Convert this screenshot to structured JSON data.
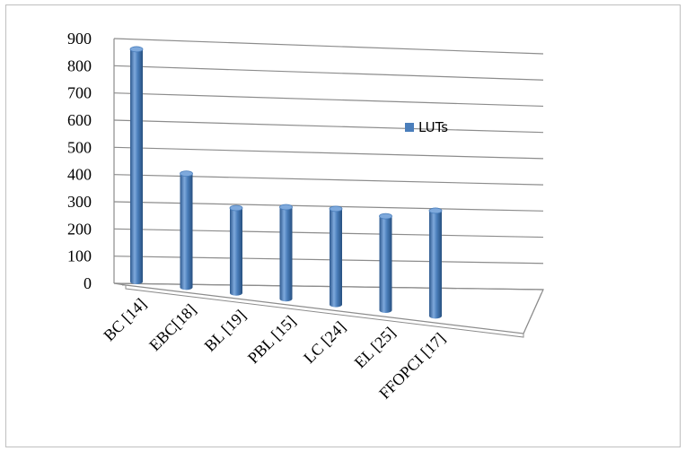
{
  "chart_data": {
    "type": "bar",
    "title": "",
    "xlabel": "",
    "ylabel": "",
    "ylim": [
      0,
      900
    ],
    "yticks": [
      0,
      100,
      200,
      300,
      400,
      500,
      600,
      700,
      800,
      900
    ],
    "categories": [
      "BC [14]",
      "EBC[18]",
      "BL [19]",
      "PBL [15]",
      "LC [24]",
      "EL [25]",
      "FFOPCI [17]"
    ],
    "series": [
      {
        "name": "LUTs",
        "values": [
          870,
          420,
          310,
          330,
          340,
          330,
          365
        ]
      }
    ],
    "grid": true,
    "legend_position": "right",
    "style": "3d-cylinder",
    "colors": {
      "bar": "#4a7ebb",
      "bar_dark": "#2f5a8f",
      "bar_light": "#7ea9dc",
      "grid": "#8c8c8c"
    }
  }
}
